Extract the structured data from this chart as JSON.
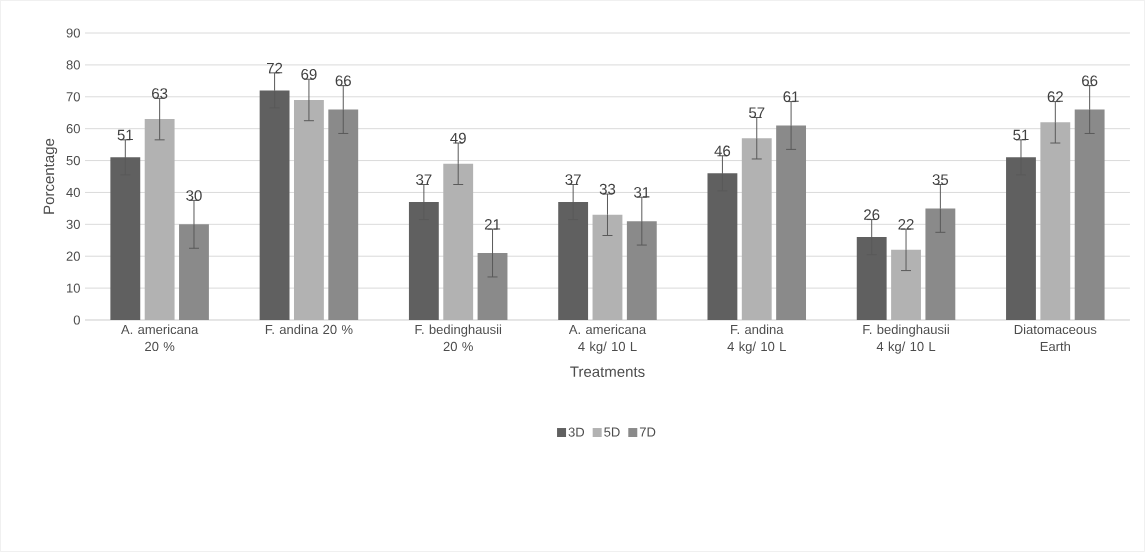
{
  "chart_data": {
    "type": "bar",
    "xlabel": "Treatments",
    "ylabel": "Porcentage",
    "categories": [
      "A. americana 20 %",
      "F. andina 20 %",
      "F. bedinghausii 20 %",
      "A. americana 4 kg/ 10 L",
      "F. andina 4 kg/ 10 L",
      "F. bedinghausii 4 kg/ 10 L",
      "Diatomaceous Earth"
    ],
    "series": [
      {
        "name": "3D",
        "color": "#606060",
        "values": [
          51,
          72,
          37,
          37,
          46,
          26,
          51
        ],
        "errors": [
          5.5,
          5.5,
          5.5,
          5.5,
          5.5,
          5.5,
          5.5
        ]
      },
      {
        "name": "5D",
        "color": "#b2b2b2",
        "values": [
          63,
          69,
          49,
          33,
          57,
          22,
          62
        ],
        "errors": [
          6.5,
          6.5,
          6.5,
          6.5,
          6.5,
          6.5,
          6.5
        ]
      },
      {
        "name": "7D",
        "color": "#8a8a8a",
        "values": [
          30,
          66,
          21,
          31,
          61,
          35,
          66
        ],
        "errors": [
          7.5,
          7.5,
          7.5,
          7.5,
          7.5,
          7.5,
          7.5
        ]
      }
    ],
    "ylim": [
      0,
      90
    ],
    "yticks": [
      0,
      10,
      20,
      30,
      40,
      50,
      60,
      70,
      80,
      90
    ],
    "grid": "y",
    "legend": "bottom",
    "data_labels": true
  }
}
